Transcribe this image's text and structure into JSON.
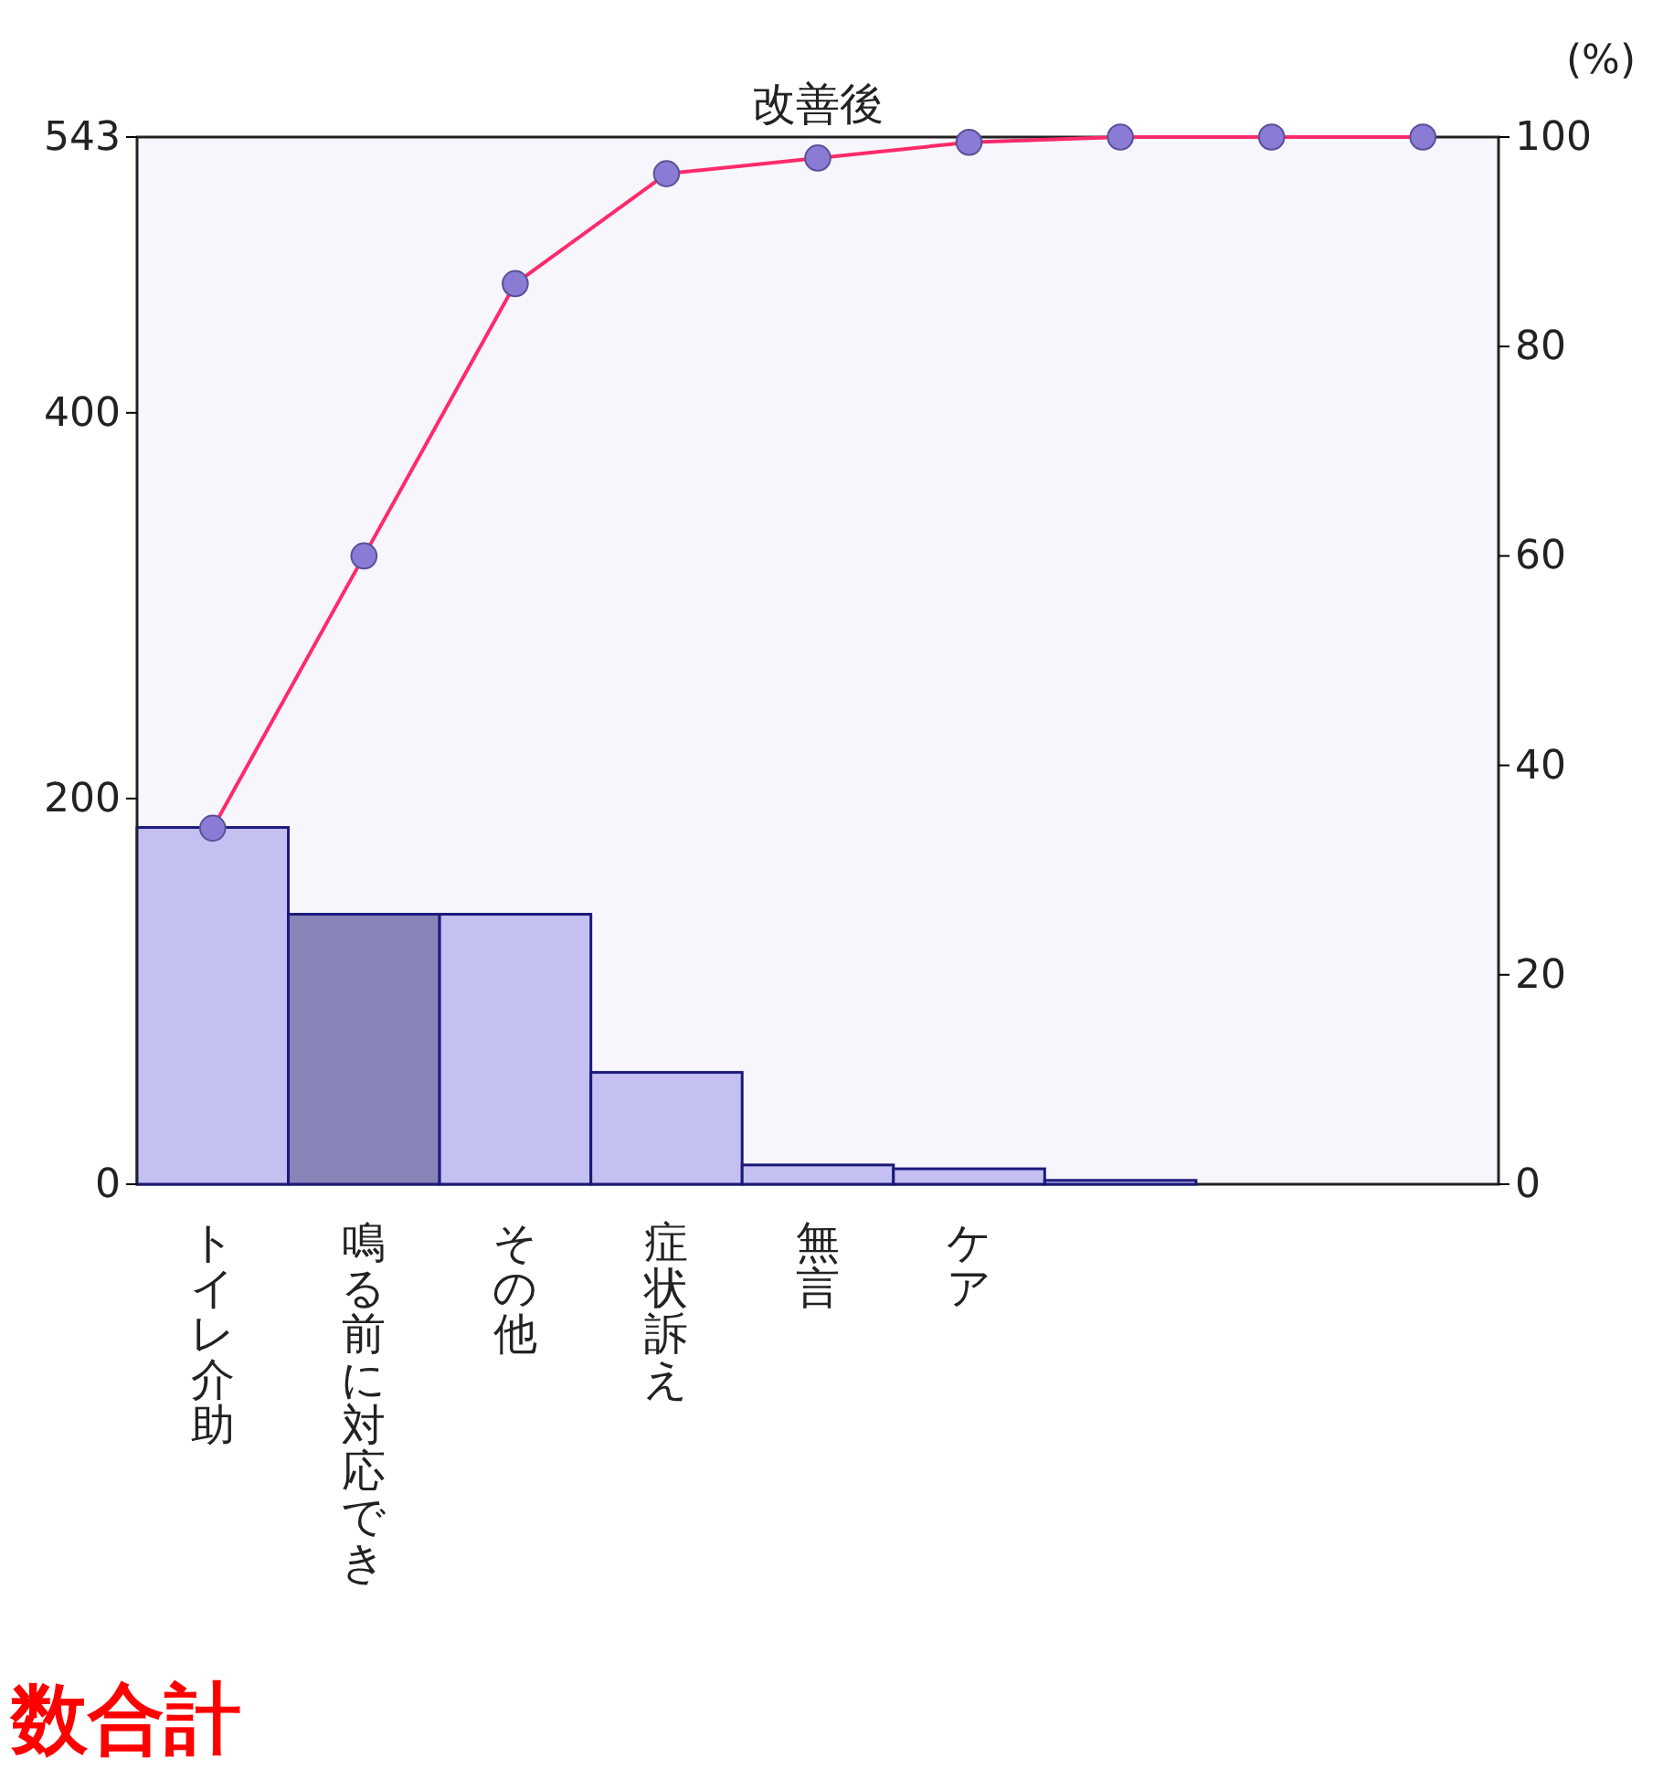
{
  "chart_data": {
    "type": "bar",
    "title": "改善後",
    "y2label": "(%)",
    "categories": [
      "トイレ介助",
      "鳴る前に対応でき",
      "その他",
      "症状訴え",
      "無言",
      "ケア",
      null,
      null,
      null
    ],
    "series": [
      {
        "values": [
          185,
          140,
          140,
          58,
          10,
          8,
          2,
          0,
          0
        ],
        "colors": [
          "#c4c0f2",
          "#8884b8",
          "#c4c0f2",
          "#c4c0f2",
          "#c4c0f2",
          "#c4c0f2",
          "#c4c0f2",
          "#c4c0f2",
          "#c4c0f2"
        ]
      },
      {
        "type": "line",
        "axis": "y2",
        "color": "#ff2a6a",
        "values": [
          34,
          60,
          86,
          96.5,
          98,
          99.5,
          100,
          100,
          100
        ]
      }
    ],
    "ylim": [
      0,
      543
    ],
    "yticks": [
      0,
      200,
      400,
      543
    ],
    "y2lim": [
      0,
      100
    ],
    "y2ticks": [
      0,
      20,
      40,
      60,
      80,
      100
    ],
    "marker": "circle",
    "grid": false,
    "annotations": [
      "数合計"
    ]
  }
}
